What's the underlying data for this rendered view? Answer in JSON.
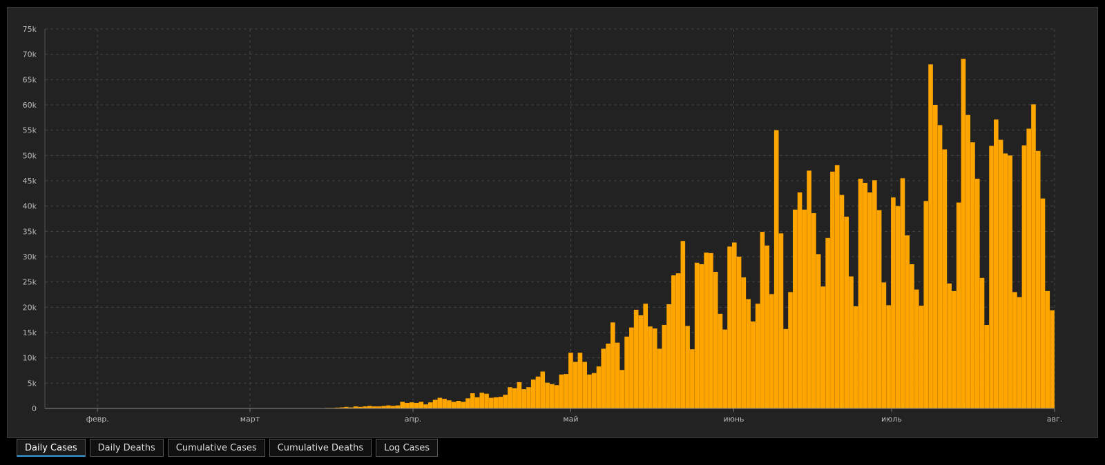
{
  "chart_data": {
    "type": "bar",
    "x_start": "2020-01-22",
    "x_end": "2020-08-01",
    "ylim": [
      0,
      75000
    ],
    "y_ticks": [
      "0",
      "5k",
      "10k",
      "15k",
      "20k",
      "25k",
      "30k",
      "35k",
      "40k",
      "45k",
      "50k",
      "55k",
      "60k",
      "65k",
      "70k",
      "75k"
    ],
    "x_ticks": [
      {
        "label": "февр.",
        "date": "2020-02-01"
      },
      {
        "label": "март",
        "date": "2020-03-01"
      },
      {
        "label": "апр.",
        "date": "2020-04-01"
      },
      {
        "label": "май",
        "date": "2020-05-01"
      },
      {
        "label": "июнь",
        "date": "2020-06-01"
      },
      {
        "label": "июль",
        "date": "2020-07-01"
      },
      {
        "label": "авг.",
        "date": "2020-08-01"
      }
    ],
    "grid": true,
    "bar_color": "#ffa500",
    "values": [
      0,
      0,
      0,
      0,
      0,
      0,
      0,
      0,
      0,
      0,
      0,
      0,
      0,
      0,
      0,
      0,
      0,
      0,
      0,
      0,
      0,
      0,
      0,
      0,
      0,
      0,
      0,
      0,
      0,
      0,
      0,
      0,
      0,
      0,
      0,
      0,
      0,
      0,
      0,
      0,
      0,
      0,
      0,
      0,
      0,
      0,
      0,
      0,
      0,
      0,
      0,
      0,
      0,
      0,
      0,
      0,
      0,
      0,
      0,
      0,
      100,
      100,
      150,
      200,
      300,
      200,
      400,
      300,
      400,
      500,
      400,
      400,
      500,
      600,
      500,
      600,
      1300,
      1100,
      1200,
      1100,
      1300,
      800,
      1200,
      1700,
      2100,
      1900,
      1600,
      1300,
      1500,
      1300,
      2000,
      3000,
      2200,
      3100,
      2900,
      2100,
      2200,
      2300,
      2700,
      4200,
      4000,
      5200,
      3800,
      4200,
      5700,
      6300,
      7300,
      5100,
      4800,
      4600,
      6700,
      6800,
      11000,
      9200,
      11000,
      9200,
      6700,
      7000,
      8300,
      11800,
      12800,
      17000,
      13000,
      7600,
      14200,
      16000,
      19500,
      18400,
      20700,
      16200,
      15800,
      11800,
      16500,
      20600,
      26300,
      26700,
      33100,
      16300,
      11700,
      28800,
      28500,
      30800,
      30700,
      27000,
      18700,
      15600,
      32000,
      32800,
      30000,
      25900,
      21600,
      17200,
      20700,
      34900,
      32200,
      22600,
      55000,
      34600,
      15700,
      23000,
      39300,
      42700,
      39300,
      47000,
      38600,
      30500,
      24100,
      33700,
      46800,
      48100,
      42200,
      37900,
      26100,
      20200,
      45400,
      44600,
      42700,
      45100,
      39200,
      24900,
      20400,
      41700,
      40000,
      45500,
      34200,
      28500,
      23500,
      20300,
      41000,
      68000,
      60000,
      56000,
      51200,
      24700,
      23200,
      40700,
      69100,
      58000,
      52600,
      45400,
      25800,
      16500,
      51900,
      57100,
      53100,
      50400,
      50000,
      23000,
      22000,
      52000,
      55300,
      60100,
      50900,
      41500,
      23200,
      19400
    ]
  },
  "tabs": [
    {
      "label": "Daily Cases",
      "active": true
    },
    {
      "label": "Daily Deaths",
      "active": false
    },
    {
      "label": "Cumulative Cases",
      "active": false
    },
    {
      "label": "Cumulative Deaths",
      "active": false
    },
    {
      "label": "Log Cases",
      "active": false
    }
  ]
}
